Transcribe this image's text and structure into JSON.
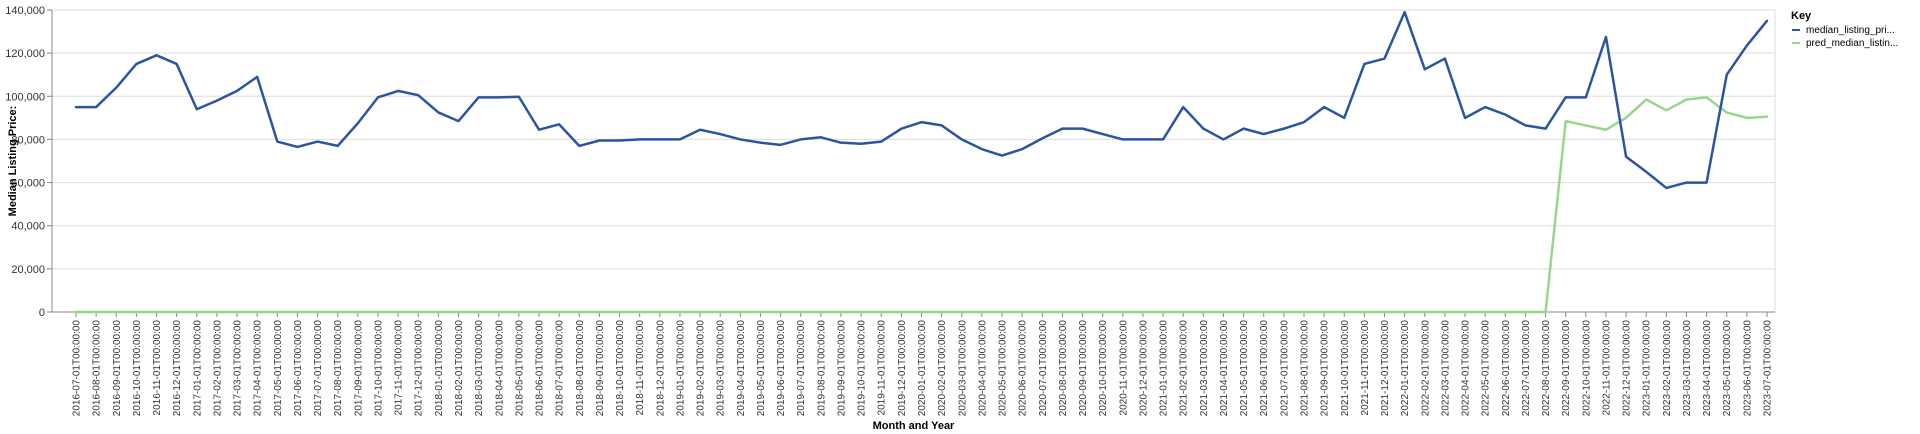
{
  "chart_data": {
    "type": "line",
    "xlabel": "Month and Year",
    "ylabel": "Median Listing Price:",
    "ylim": [
      0,
      140000
    ],
    "y_ticks": [
      "0",
      "20,000",
      "40,000",
      "60,000",
      "80,000",
      "100,000",
      "120,000",
      "140,000"
    ],
    "grid": true,
    "legend": {
      "title": "Key",
      "position": "right"
    },
    "categories": [
      "2016-07-01T00:00:00",
      "2016-08-01T00:00:00",
      "2016-09-01T00:00:00",
      "2016-10-01T00:00:00",
      "2016-11-01T00:00:00",
      "2016-12-01T00:00:00",
      "2017-01-01T00:00:00",
      "2017-02-01T00:00:00",
      "2017-03-01T00:00:00",
      "2017-04-01T00:00:00",
      "2017-05-01T00:00:00",
      "2017-06-01T00:00:00",
      "2017-07-01T00:00:00",
      "2017-08-01T00:00:00",
      "2017-09-01T00:00:00",
      "2017-10-01T00:00:00",
      "2017-11-01T00:00:00",
      "2017-12-01T00:00:00",
      "2018-01-01T00:00:00",
      "2018-02-01T00:00:00",
      "2018-03-01T00:00:00",
      "2018-04-01T00:00:00",
      "2018-05-01T00:00:00",
      "2018-06-01T00:00:00",
      "2018-07-01T00:00:00",
      "2018-08-01T00:00:00",
      "2018-09-01T00:00:00",
      "2018-10-01T00:00:00",
      "2018-11-01T00:00:00",
      "2018-12-01T00:00:00",
      "2019-01-01T00:00:00",
      "2019-02-01T00:00:00",
      "2019-03-01T00:00:00",
      "2019-04-01T00:00:00",
      "2019-05-01T00:00:00",
      "2019-06-01T00:00:00",
      "2019-07-01T00:00:00",
      "2019-08-01T00:00:00",
      "2019-09-01T00:00:00",
      "2019-10-01T00:00:00",
      "2019-11-01T00:00:00",
      "2019-12-01T00:00:00",
      "2020-01-01T00:00:00",
      "2020-02-01T00:00:00",
      "2020-03-01T00:00:00",
      "2020-04-01T00:00:00",
      "2020-05-01T00:00:00",
      "2020-06-01T00:00:00",
      "2020-07-01T00:00:00",
      "2020-08-01T00:00:00",
      "2020-09-01T00:00:00",
      "2020-10-01T00:00:00",
      "2020-11-01T00:00:00",
      "2020-12-01T00:00:00",
      "2021-01-01T00:00:00",
      "2021-02-01T00:00:00",
      "2021-03-01T00:00:00",
      "2021-04-01T00:00:00",
      "2021-05-01T00:00:00",
      "2021-06-01T00:00:00",
      "2021-07-01T00:00:00",
      "2021-08-01T00:00:00",
      "2021-09-01T00:00:00",
      "2021-10-01T00:00:00",
      "2021-11-01T00:00:00",
      "2021-12-01T00:00:00",
      "2022-01-01T00:00:00",
      "2022-02-01T00:00:00",
      "2022-03-01T00:00:00",
      "2022-04-01T00:00:00",
      "2022-05-01T00:00:00",
      "2022-06-01T00:00:00",
      "2022-07-01T00:00:00",
      "2022-08-01T00:00:00",
      "2022-09-01T00:00:00",
      "2022-10-01T00:00:00",
      "2022-11-01T00:00:00",
      "2022-12-01T00:00:00",
      "2023-01-01T00:00:00",
      "2023-02-01T00:00:00",
      "2023-03-01T00:00:00",
      "2023-04-01T00:00:00",
      "2023-05-01T00:00:00",
      "2023-06-01T00:00:00",
      "2023-07-01T00:00:00"
    ],
    "series": [
      {
        "name": "median_listing_pri...",
        "color": "#2b55a0",
        "values": [
          95000,
          95000,
          104000,
          115000,
          119000,
          115000,
          94000,
          98000,
          102500,
          109000,
          79000,
          76500,
          79000,
          77000,
          87500,
          99500,
          102500,
          100500,
          92500,
          88500,
          99500,
          99500,
          99800,
          84500,
          87000,
          77000,
          79500,
          79500,
          80000,
          80000,
          80000,
          84500,
          82500,
          80000,
          78500,
          77500,
          80000,
          81000,
          78500,
          78000,
          79000,
          85000,
          88000,
          86500,
          80000,
          75500,
          72500,
          75500,
          80500,
          85000,
          85000,
          82500,
          80000,
          80000,
          80000,
          95000,
          85000,
          80000,
          85000,
          82500,
          85000,
          88000,
          95000,
          90000,
          115000,
          117500,
          139000,
          112500,
          117500,
          90000,
          95000,
          91500,
          86500,
          85000,
          99500,
          99500,
          127500,
          72000,
          65000,
          57500,
          60000,
          60000,
          110000,
          123500,
          135000
        ]
      },
      {
        "name": "pred_median_listin...",
        "color": "#98d68a",
        "values": [
          0,
          0,
          0,
          0,
          0,
          0,
          0,
          0,
          0,
          0,
          0,
          0,
          0,
          0,
          0,
          0,
          0,
          0,
          0,
          0,
          0,
          0,
          0,
          0,
          0,
          0,
          0,
          0,
          0,
          0,
          0,
          0,
          0,
          0,
          0,
          0,
          0,
          0,
          0,
          0,
          0,
          0,
          0,
          0,
          0,
          0,
          0,
          0,
          0,
          0,
          0,
          0,
          0,
          0,
          0,
          0,
          0,
          0,
          0,
          0,
          0,
          0,
          0,
          0,
          0,
          0,
          0,
          0,
          0,
          0,
          0,
          0,
          0,
          0,
          88500,
          86500,
          84500,
          90000,
          98500,
          93500,
          98500,
          99500,
          92500,
          90000,
          90500
        ]
      }
    ]
  }
}
